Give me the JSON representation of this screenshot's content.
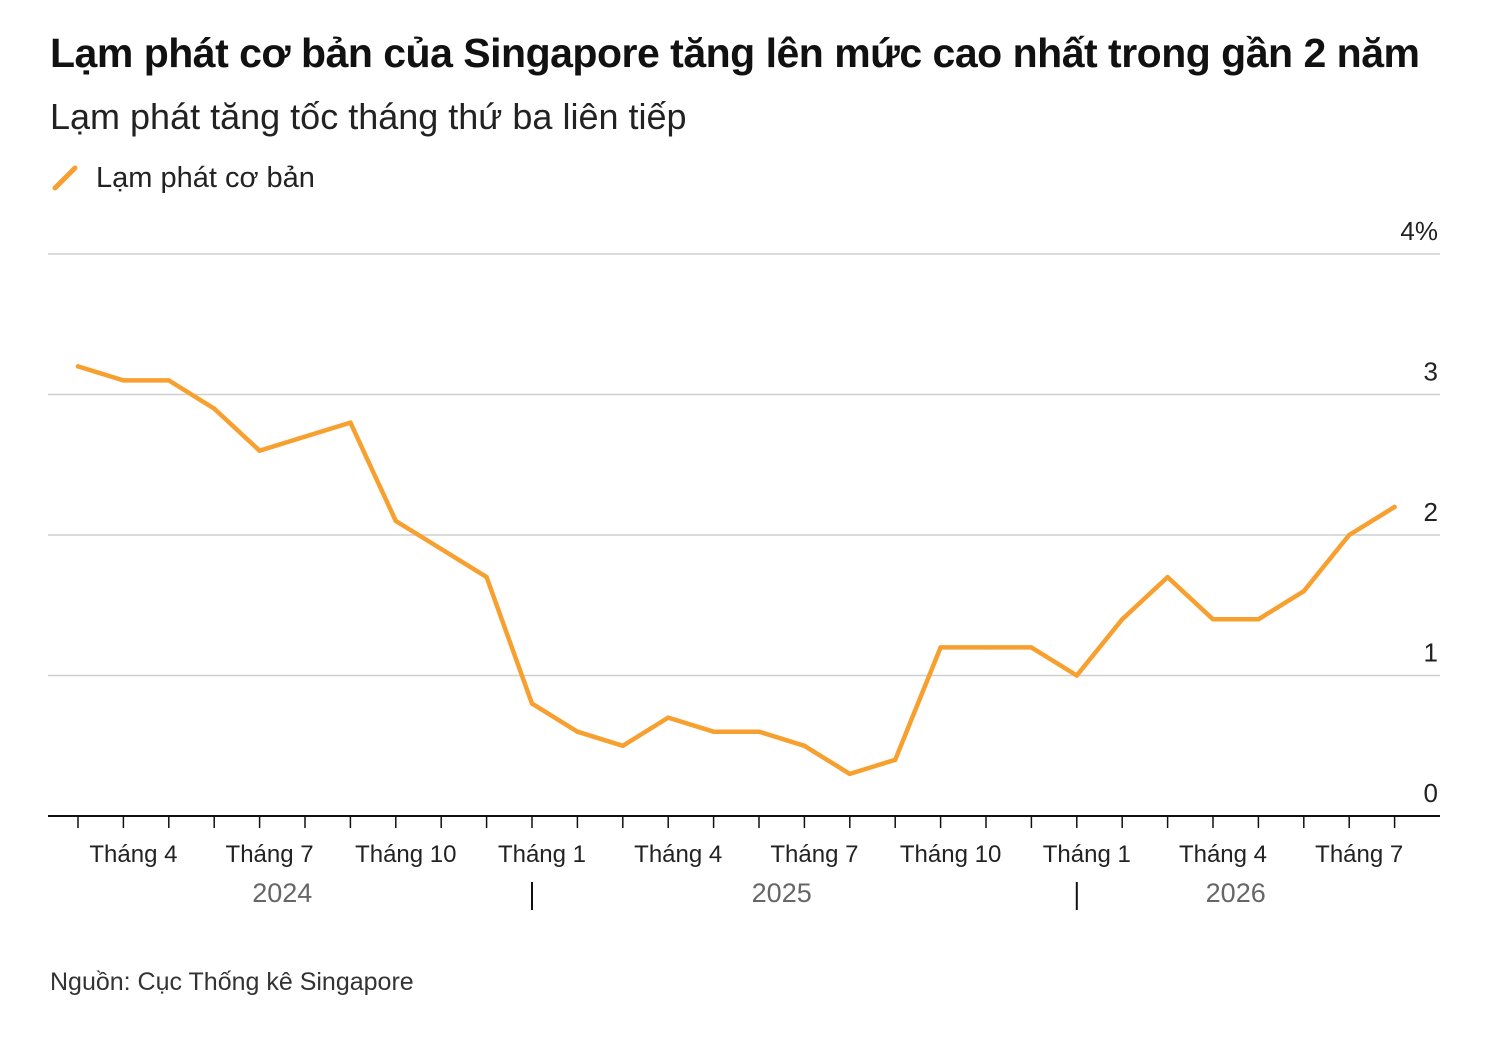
{
  "title": "Lạm phát cơ bản của Singapore tăng lên mức cao nhất trong gần 2 năm",
  "subtitle": "Lạm phát tăng tốc tháng thứ ba liên tiếp",
  "source": "Nguồn: Cục Thống kê Singapore",
  "colors": {
    "line": "#f7a030",
    "grid": "#cfcfcf",
    "axis": "#111111",
    "text": "#222222",
    "year": "#666666"
  },
  "chart_data": {
    "type": "line",
    "x_start": "2024-03",
    "x_end": "2026-08",
    "y_ticks": [
      "0",
      "1",
      "2",
      "3",
      "4%"
    ],
    "ylim": [
      0,
      4
    ],
    "grid": true,
    "legend_position": "top-left",
    "x_tick_labels": [
      {
        "label": "Tháng 4",
        "month": "2024-04"
      },
      {
        "label": "Tháng 7",
        "month": "2024-07"
      },
      {
        "label": "Tháng 10",
        "month": "2024-10"
      },
      {
        "label": "Tháng 1",
        "month": "2025-01"
      },
      {
        "label": "Tháng 4",
        "month": "2025-04"
      },
      {
        "label": "Tháng 7",
        "month": "2025-07"
      },
      {
        "label": "Tháng 10",
        "month": "2025-10"
      },
      {
        "label": "Tháng 1",
        "month": "2026-01"
      },
      {
        "label": "Tháng 4",
        "month": "2026-04"
      },
      {
        "label": "Tháng 7",
        "month": "2026-07"
      }
    ],
    "years": [
      {
        "label": "2024",
        "from": "2024-03",
        "to": "2024-12"
      },
      {
        "label": "2025",
        "from": "2025-01",
        "to": "2025-12"
      },
      {
        "label": "2026",
        "from": "2026-01",
        "to": "2026-08"
      }
    ],
    "series": [
      {
        "name": "Lạm phát cơ bản",
        "x": [
          "2024-03",
          "2024-04",
          "2024-05",
          "2024-06",
          "2024-07",
          "2024-08",
          "2024-09",
          "2024-10",
          "2024-11",
          "2024-12",
          "2025-01",
          "2025-02",
          "2025-03",
          "2025-04",
          "2025-05",
          "2025-06",
          "2025-07",
          "2025-08",
          "2025-09",
          "2025-10",
          "2025-11",
          "2025-12",
          "2026-01",
          "2026-02",
          "2026-03",
          "2026-04",
          "2026-05",
          "2026-06",
          "2026-07",
          "2026-08"
        ],
        "values": [
          3.2,
          3.1,
          3.1,
          2.9,
          2.6,
          2.7,
          2.8,
          2.1,
          1.9,
          1.7,
          0.8,
          0.6,
          0.5,
          0.7,
          0.6,
          0.6,
          0.5,
          0.3,
          0.4,
          1.2,
          1.2,
          1.2,
          1.0,
          1.4,
          1.7,
          1.4,
          1.4,
          1.6,
          2.0,
          2.2
        ]
      }
    ]
  }
}
